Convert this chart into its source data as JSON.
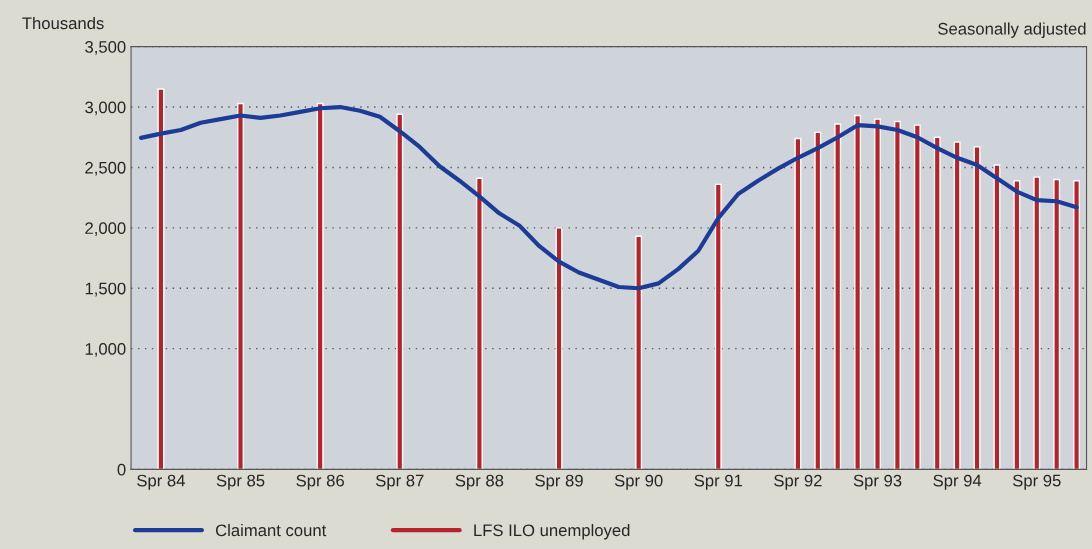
{
  "chart_data": {
    "type": "bar",
    "ylabel": "Thousands",
    "annotations": [
      "Seasonally adjusted"
    ],
    "categories": [
      null,
      "Spr 84",
      null,
      null,
      null,
      "Spr 85",
      null,
      null,
      null,
      "Spr 86",
      null,
      null,
      null,
      "Spr 87",
      null,
      null,
      null,
      "Spr 88",
      null,
      null,
      null,
      "Spr 89",
      null,
      null,
      null,
      "Spr 90",
      null,
      null,
      null,
      "Spr 91",
      null,
      null,
      null,
      "Spr 92",
      null,
      null,
      null,
      "Spr 93",
      null,
      null,
      null,
      "Spr 94",
      null,
      null,
      null,
      "Spr 95",
      null,
      null
    ],
    "ylim": [
      0,
      3500
    ],
    "yticks": [
      {
        "value": 0,
        "label": "0"
      },
      {
        "value": 1000,
        "label": "1,000"
      },
      {
        "value": 1500,
        "label": "1,500"
      },
      {
        "value": 2000,
        "label": "2,000"
      },
      {
        "value": 2500,
        "label": "2,500"
      },
      {
        "value": 3000,
        "label": "3,000"
      },
      {
        "value": 3500,
        "label": "3,500"
      }
    ],
    "grid": "y",
    "legend": "bottom",
    "series": [
      {
        "name": "Claimant count",
        "type": "line",
        "color": "#1c3c97",
        "values": [
          2745,
          2780,
          2810,
          2870,
          2900,
          2930,
          2910,
          2930,
          2960,
          2990,
          3000,
          2970,
          2920,
          2800,
          2670,
          2510,
          2390,
          2260,
          2120,
          2020,
          1850,
          1720,
          1630,
          1570,
          1510,
          1500,
          1540,
          1660,
          1810,
          2080,
          2280,
          2390,
          2490,
          2580,
          2660,
          2750,
          2850,
          2840,
          2810,
          2750,
          2660,
          2580,
          2520,
          2410,
          2300,
          2230,
          2220,
          2170
        ]
      },
      {
        "name": "LFS ILO unemployed",
        "color": "#b5242b",
        "values": [
          null,
          3150,
          null,
          null,
          null,
          3030,
          null,
          null,
          null,
          3030,
          null,
          null,
          null,
          2940,
          null,
          null,
          null,
          2410,
          null,
          null,
          null,
          2000,
          null,
          null,
          null,
          1930,
          null,
          null,
          null,
          2360,
          null,
          null,
          null,
          2740,
          2790,
          2860,
          2930,
          2900,
          2880,
          2850,
          2750,
          2710,
          2670,
          2520,
          2390,
          2420,
          2400,
          2390
        ]
      }
    ]
  }
}
